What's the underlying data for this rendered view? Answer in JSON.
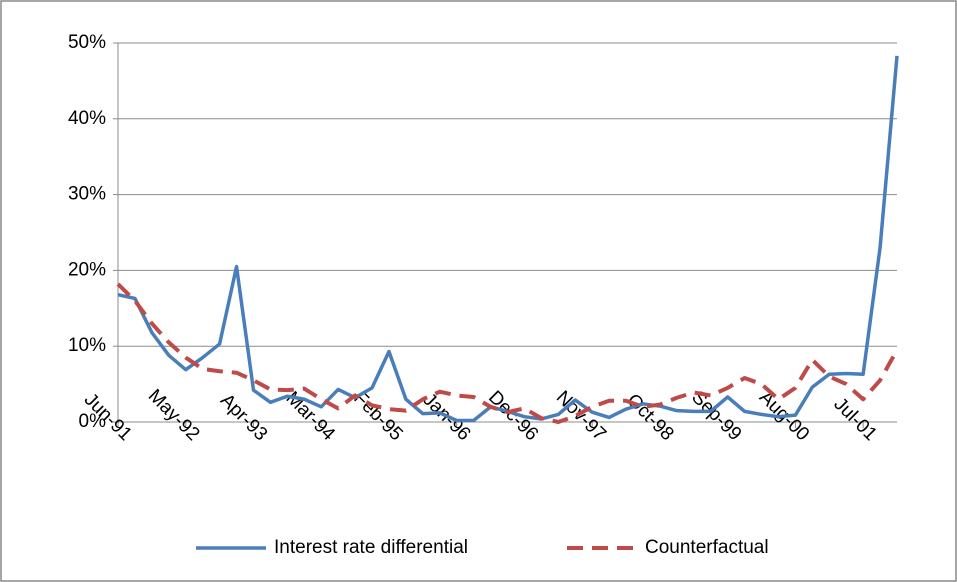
{
  "chart_data": {
    "type": "line",
    "categories": [
      "Jun-91",
      null,
      null,
      null,
      "May-92",
      null,
      null,
      null,
      "Apr-93",
      null,
      null,
      null,
      "Mar-94",
      null,
      null,
      null,
      "Feb-95",
      null,
      null,
      null,
      "Jan-96",
      null,
      null,
      null,
      "Dec-96",
      null,
      null,
      null,
      "Nov-97",
      null,
      null,
      null,
      "Oct-98",
      null,
      null,
      null,
      "Sep-99",
      null,
      null,
      null,
      "Aug-00",
      null,
      null,
      null,
      "Jul-01",
      null,
      null
    ],
    "series": [
      {
        "name": "Interest rate differential",
        "color": "#4a7ebb",
        "dash": false,
        "values": [
          16.8,
          16.3,
          11.8,
          8.8,
          6.9,
          8.5,
          10.3,
          20.5,
          4.2,
          2.6,
          3.4,
          3.0,
          2.0,
          4.3,
          3.2,
          4.5,
          9.3,
          3.0,
          1.1,
          1.2,
          0.2,
          0.2,
          2.0,
          1.4,
          0.7,
          0.4,
          1.0,
          2.9,
          1.3,
          0.6,
          1.7,
          2.4,
          2.1,
          1.5,
          1.4,
          1.4,
          3.3,
          1.4,
          1.0,
          0.7,
          0.9,
          4.6,
          6.3,
          6.4,
          6.3,
          23,
          48.3
        ]
      },
      {
        "name": "Counterfactual",
        "color": "#be4b48",
        "dash": true,
        "values": [
          18.2,
          16,
          13,
          10.5,
          8.5,
          7,
          6.7,
          6.5,
          5.5,
          4.3,
          4.2,
          4.4,
          3.0,
          1.8,
          3.5,
          2.2,
          1.7,
          1.5,
          3.0,
          4.0,
          3.5,
          3.3,
          2.0,
          1.3,
          1.8,
          0.5,
          0,
          0.8,
          2.0,
          2.8,
          2.8,
          2.0,
          2.3,
          3.2,
          3.9,
          3.5,
          4.5,
          5.8,
          5.0,
          3.0,
          4.5,
          8.2,
          6.0,
          5.0,
          3.0,
          5.5,
          9.5
        ]
      }
    ],
    "ylim": [
      0,
      50
    ],
    "yticks": [
      {
        "value": 0,
        "label": "0%"
      },
      {
        "value": 10,
        "label": "10%"
      },
      {
        "value": 20,
        "label": "20%"
      },
      {
        "value": 30,
        "label": "30%"
      },
      {
        "value": 40,
        "label": "40%"
      },
      {
        "value": 50,
        "label": "50%"
      }
    ],
    "grid": true,
    "legend": "bottom"
  }
}
